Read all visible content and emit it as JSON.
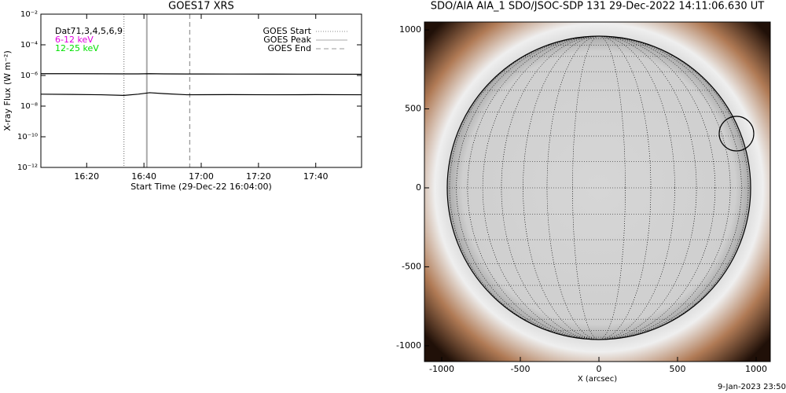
{
  "chart_data": [
    {
      "type": "line",
      "title": "GOES17 XRS",
      "xlabel": "Start Time (29-Dec-22 16:04:00)",
      "ylabel": "X-ray Flux (W m⁻²)",
      "log_y": true,
      "ylim": [
        1e-12,
        0.01
      ],
      "yticks": [
        {
          "value": 1e-12,
          "label": "10⁻¹²"
        },
        {
          "value": 1e-10,
          "label": "10⁻¹⁰"
        },
        {
          "value": 1e-08,
          "label": "10⁻⁸"
        },
        {
          "value": 1e-06,
          "label": "10⁻⁶"
        },
        {
          "value": 0.0001,
          "label": "10⁻⁴"
        },
        {
          "value": 0.01,
          "label": "10⁻²"
        }
      ],
      "xlim": [
        "16:04",
        "17:56"
      ],
      "xticks": [
        "16:20",
        "16:40",
        "17:00",
        "17:20",
        "17:40"
      ],
      "legend_labels": [
        {
          "text": "Dat71,3,4,5,6,9",
          "color": "#000000"
        },
        {
          "text": "6-12 keV",
          "color": "#e000e0"
        },
        {
          "text": "12-25 keV",
          "color": "#00e000"
        }
      ],
      "markers": [
        {
          "name": "GOES Start",
          "x": "16:33",
          "style": "dotted",
          "color": "#888888"
        },
        {
          "name": "GOES Peak",
          "x": "16:41",
          "style": "solid",
          "color": "#aaaaaa"
        },
        {
          "name": "GOES End",
          "x": "16:56",
          "style": "dashed",
          "color": "#999999"
        }
      ],
      "x": [
        "16:04",
        "16:15",
        "16:25",
        "16:33",
        "16:38",
        "16:42",
        "16:47",
        "16:55",
        "17:10",
        "17:25",
        "17:40",
        "17:56"
      ],
      "series": [
        {
          "color": "#000000",
          "values": [
            1.3e-06,
            1.3e-06,
            1.28e-06,
            1.27e-06,
            1.27e-06,
            1.3e-06,
            1.27e-06,
            1.25e-06,
            1.24e-06,
            1.23e-06,
            1.22e-06,
            1.2e-06
          ]
        },
        {
          "color": "#000000",
          "values": [
            6e-08,
            5.8e-08,
            5.5e-08,
            5e-08,
            6e-08,
            7.5e-08,
            6.5e-08,
            5.5e-08,
            5.6e-08,
            5.5e-08,
            5.6e-08,
            5.5e-08
          ]
        }
      ]
    },
    {
      "type": "image",
      "title": "SDO/AIA AIA_1 SDO/JSOC-SDP 131 29-Dec-2022 14:11:06.630 UT",
      "xlabel": "X (arcsec)",
      "xlim": [
        -1110,
        1090
      ],
      "ylim": [
        -1100,
        1050
      ],
      "xticks": [
        -1000,
        -500,
        0,
        500,
        1000
      ],
      "yticks": [
        -1000,
        -500,
        0,
        500,
        1000
      ]
    }
  ],
  "footer": "9-Jan-2023 23:50"
}
